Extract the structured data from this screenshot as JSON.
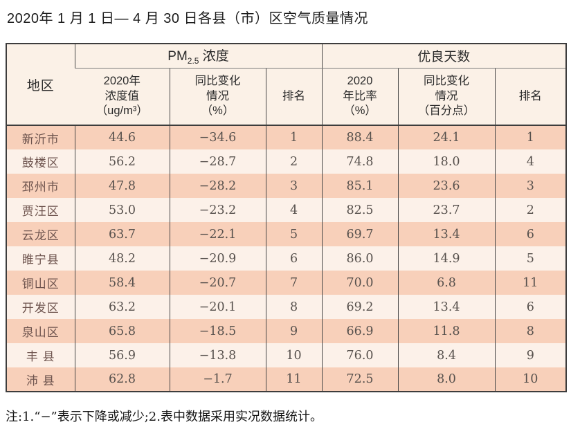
{
  "page": {
    "title": "2020年 1 月 1 日— 4 月 30 日各县（市）区空气质量情况",
    "note": "注:1.“−”表示下降或减少;2.表中数据采用实况数据统计。"
  },
  "colors": {
    "row_odd": "#f8d0ba",
    "row_even": "#fcf1e9",
    "header_bg": "#fbf1e7",
    "border": "#3d3d3d",
    "region_text": "#6e544e",
    "number_text": "#57514d"
  },
  "table": {
    "region_header": "地区",
    "groups": {
      "pm_prefix": "PM",
      "pm_sub": "2.5",
      "pm_suffix": " 浓度",
      "good_days": "优良天数"
    },
    "sub_headers": {
      "pm_value": "2020年\n浓度值\n（ug/m³）",
      "pm_change": "同比变化\n情况\n（%）",
      "pm_rank": "排名",
      "good_ratio": "2020\n年比率\n（%）",
      "good_change": "同比变化\n情况\n（百分点）",
      "good_rank": "排名"
    },
    "rows": [
      {
        "region": "新沂市",
        "pm_value": "44.6",
        "pm_change": "−34.6",
        "pm_rank": "1",
        "good_ratio": "88.4",
        "good_change": "24.1",
        "good_rank": "1"
      },
      {
        "region": "鼓楼区",
        "pm_value": "56.2",
        "pm_change": "−28.7",
        "pm_rank": "2",
        "good_ratio": "74.8",
        "good_change": "18.0",
        "good_rank": "4"
      },
      {
        "region": "邳州市",
        "pm_value": "47.8",
        "pm_change": "−28.2",
        "pm_rank": "3",
        "good_ratio": "85.1",
        "good_change": "23.6",
        "good_rank": "3"
      },
      {
        "region": "贾汪区",
        "pm_value": "53.0",
        "pm_change": "−23.2",
        "pm_rank": "4",
        "good_ratio": "82.5",
        "good_change": "23.7",
        "good_rank": "2"
      },
      {
        "region": "云龙区",
        "pm_value": "63.7",
        "pm_change": "−22.1",
        "pm_rank": "5",
        "good_ratio": "69.7",
        "good_change": "13.4",
        "good_rank": "6"
      },
      {
        "region": "睢宁县",
        "pm_value": "48.2",
        "pm_change": "−20.9",
        "pm_rank": "6",
        "good_ratio": "86.0",
        "good_change": "14.9",
        "good_rank": "5"
      },
      {
        "region": "铜山区",
        "pm_value": "58.4",
        "pm_change": "−20.7",
        "pm_rank": "7",
        "good_ratio": "70.0",
        "good_change": "6.8",
        "good_rank": "11"
      },
      {
        "region": "开发区",
        "pm_value": "63.2",
        "pm_change": "−20.1",
        "pm_rank": "8",
        "good_ratio": "69.2",
        "good_change": "13.4",
        "good_rank": "6"
      },
      {
        "region": "泉山区",
        "pm_value": "65.8",
        "pm_change": "−18.5",
        "pm_rank": "9",
        "good_ratio": "66.9",
        "good_change": "11.8",
        "good_rank": "8"
      },
      {
        "region": "丰 县",
        "pm_value": "56.9",
        "pm_change": "−13.8",
        "pm_rank": "10",
        "good_ratio": "76.0",
        "good_change": "8.4",
        "good_rank": "9"
      },
      {
        "region": "沛 县",
        "pm_value": "62.8",
        "pm_change": "−1.7",
        "pm_rank": "11",
        "good_ratio": "72.5",
        "good_change": "8.0",
        "good_rank": "10"
      }
    ]
  }
}
